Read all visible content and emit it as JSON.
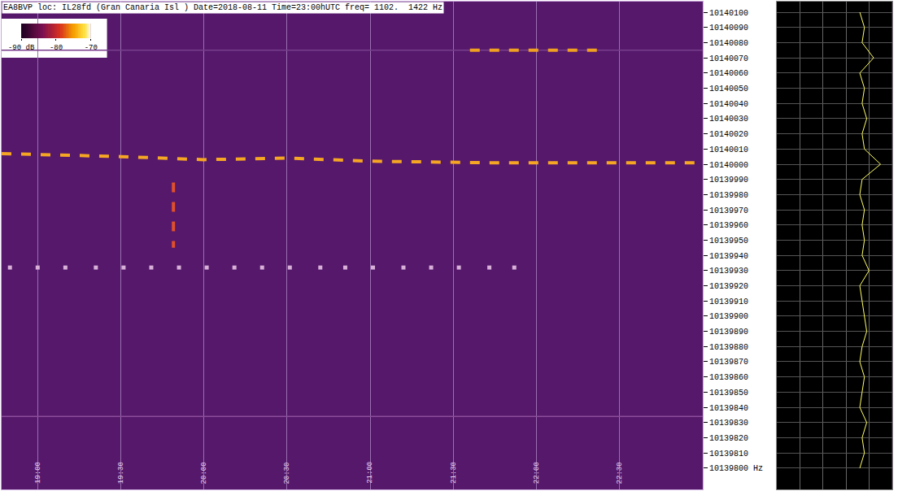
{
  "chart_data": [
    {
      "type": "spectrogram",
      "title": "EA8BVP loc: IL28fd (Gran Canaria Isl ) Date=2018-08-11 Time=23:00hUTC freq= 1102.  1422 Hz",
      "xlim": [
        1127,
        1380
      ],
      "xticks": [
        {
          "value": 1140,
          "label": "19:00"
        },
        {
          "value": 1170,
          "label": "19:30"
        },
        {
          "value": 1200,
          "label": "20:00"
        },
        {
          "value": 1230,
          "label": "20:30"
        },
        {
          "value": 1260,
          "label": "21:00"
        },
        {
          "value": 1290,
          "label": "21:30"
        },
        {
          "value": 1320,
          "label": "22:00"
        },
        {
          "value": 1350,
          "label": "22:30"
        }
      ],
      "ylim": [
        10139786,
        10140107
      ],
      "yticks": [
        {
          "value": 10139800,
          "label": "10139800 Hz"
        },
        10139810,
        10139820,
        10139830,
        10139840,
        10139850,
        10139860,
        10139870,
        10139880,
        10139890,
        10139900,
        10139910,
        10139920,
        10139930,
        10139940,
        10139950,
        10139960,
        10139970,
        10139980,
        10139990,
        10140000,
        10140010,
        10140020,
        10140030,
        10140040,
        10140050,
        10140060,
        10140070,
        10140080,
        10140090,
        10140100
      ],
      "grid": "x",
      "color_scale": {
        "range": [
          -90,
          -70
        ],
        "ticks": [
          {
            "value": -90,
            "label": "-90 dB"
          },
          -80,
          -70
        ]
      },
      "series": [
        {
          "type": "line",
          "line_style": "solid",
          "color": "#8a4c9a",
          "x": [
            1127,
            1380
          ],
          "values": [
            10139834,
            10139834
          ]
        },
        {
          "type": "line",
          "line_style": "solid",
          "color": "#7a3f8e",
          "x": [
            1127,
            1380
          ],
          "values": [
            10140075,
            10140075
          ]
        },
        {
          "type": "line",
          "line_style": "dash",
          "color": "#f5a623",
          "x": [
            1127,
            1170,
            1200,
            1230,
            1260,
            1300,
            1340,
            1380
          ],
          "values": [
            10140007,
            10140005,
            10140003,
            10140004,
            10140002,
            10140001,
            10140001,
            10140001
          ]
        },
        {
          "type": "line",
          "line_style": "dash",
          "color": "#f0a020",
          "x": [
            1296,
            1320,
            1343
          ],
          "values": [
            10140075,
            10140075,
            10140075
          ]
        },
        {
          "type": "line",
          "line_style": "dash",
          "color": "#e0502a",
          "x": [
            1189,
            1189
          ],
          "values": [
            10139988,
            10139945
          ]
        },
        {
          "type": "scatter",
          "marker": "square",
          "color": "#d8b0d8",
          "x": [
            1130,
            1140,
            1150,
            1161,
            1171,
            1181,
            1191,
            1201,
            1211,
            1221,
            1231,
            1242,
            1251,
            1261,
            1272,
            1282,
            1292,
            1303,
            1312
          ],
          "values": [
            10139932,
            10139932,
            10139932,
            10139932,
            10139932,
            10139932,
            10139932,
            10139932,
            10139932,
            10139932,
            10139932,
            10139932,
            10139932,
            10139932,
            10139932,
            10139932,
            10139932,
            10139932,
            10139932
          ]
        }
      ]
    },
    {
      "type": "line",
      "orientation": "horizontal",
      "color": "#ffff66",
      "tick_labels": false,
      "grid": true,
      "xlim": [
        -100,
        -50
      ],
      "xticks": [
        -90,
        -80,
        -70,
        -60
      ],
      "ylim": [
        10139786,
        10140107
      ],
      "yticks": [
        10139800,
        10139810,
        10139820,
        10139830,
        10139840,
        10139850,
        10139860,
        10139870,
        10139880,
        10139890,
        10139900,
        10139910,
        10139920,
        10139930,
        10139940,
        10139950,
        10139960,
        10139970,
        10139980,
        10139990,
        10140000,
        10140010,
        10140020,
        10140030,
        10140040,
        10140050,
        10140060,
        10140070,
        10140080,
        10140090,
        10140100
      ],
      "x": [
        10139800,
        10139810,
        10139820,
        10139830,
        10139840,
        10139850,
        10139860,
        10139870,
        10139880,
        10139890,
        10139900,
        10139910,
        10139920,
        10139930,
        10139940,
        10139950,
        10139960,
        10139970,
        10139980,
        10139990,
        10140000,
        10140010,
        10140020,
        10140030,
        10140040,
        10140050,
        10140060,
        10140070,
        10140080,
        10140090,
        10140100
      ],
      "values": [
        -64,
        -62,
        -63,
        -61,
        -64,
        -63,
        -62,
        -64,
        -63,
        -61,
        -62,
        -63,
        -64,
        -60,
        -63,
        -62,
        -63,
        -62,
        -64,
        -63,
        -55,
        -62,
        -63,
        -61,
        -63,
        -62,
        -64,
        -58,
        -63,
        -62,
        -64
      ]
    }
  ]
}
